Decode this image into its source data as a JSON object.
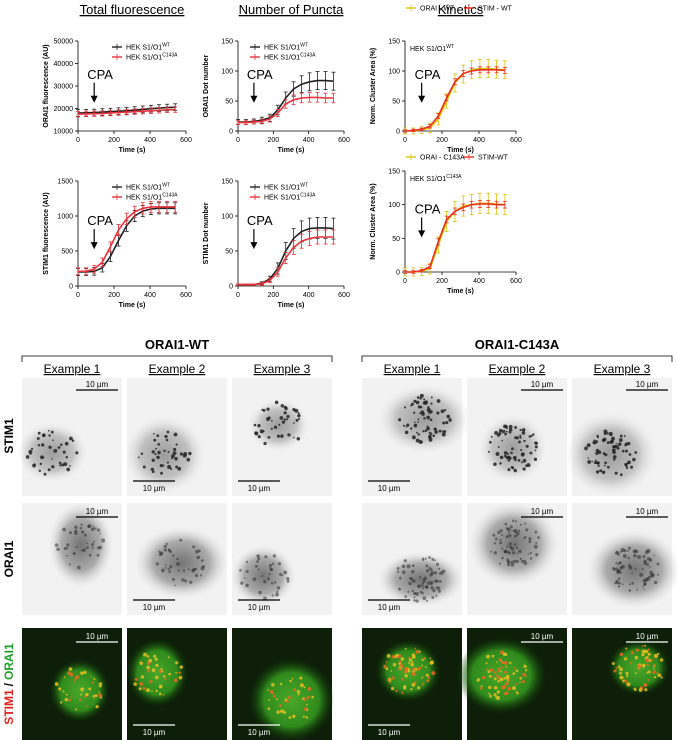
{
  "chart_data": [
    {
      "type": "line",
      "title": "Total fluorescence",
      "xlabel": "Time (s)",
      "ylabel": "ORAI1 fluorescence (AU)",
      "annotation": "CPA",
      "x": [
        0,
        45,
        90,
        135,
        180,
        225,
        270,
        315,
        360,
        405,
        450,
        495,
        540
      ],
      "xlim": [
        0,
        600
      ],
      "xticks": [
        0,
        200,
        400,
        600
      ],
      "ylim": [
        10000,
        50000
      ],
      "yticks": [
        10000,
        20000,
        30000,
        40000,
        50000
      ],
      "series": [
        {
          "name": "HEK S1/O1",
          "sup": "WT",
          "color": "#222222",
          "values": [
            18000,
            18100,
            18200,
            18400,
            18600,
            18800,
            19000,
            19300,
            19600,
            19900,
            20200,
            20400,
            20600
          ],
          "errors": [
            1500,
            1500,
            1500,
            1500,
            1500,
            1500,
            1500,
            1500,
            1500,
            1500,
            1500,
            1500,
            1500
          ]
        },
        {
          "name": "HEK S1/O1",
          "sup": "C143A",
          "color": "#e8323c",
          "values": [
            17500,
            17600,
            17700,
            17800,
            18000,
            18200,
            18400,
            18600,
            18800,
            19000,
            19200,
            19400,
            19500
          ],
          "errors": [
            1200,
            1200,
            1200,
            1200,
            1200,
            1200,
            1200,
            1200,
            1200,
            1200,
            1200,
            1200,
            1200
          ]
        }
      ]
    },
    {
      "type": "line",
      "title": "Number of Puncta",
      "xlabel": "Time (s)",
      "ylabel": "ORAI1 Dot number",
      "annotation": "CPA",
      "x": [
        0,
        45,
        90,
        135,
        180,
        225,
        270,
        315,
        360,
        405,
        450,
        495,
        540
      ],
      "xlim": [
        0,
        600
      ],
      "xticks": [
        0,
        200,
        400,
        600
      ],
      "ylim": [
        0,
        150
      ],
      "yticks": [
        0,
        50,
        100,
        150
      ],
      "series": [
        {
          "name": "HEK S1/O1",
          "sup": "WT",
          "color": "#222222",
          "values": [
            15,
            15,
            16,
            18,
            22,
            35,
            55,
            70,
            78,
            82,
            84,
            84,
            83
          ],
          "errors": [
            4,
            4,
            4,
            5,
            6,
            8,
            10,
            12,
            14,
            15,
            15,
            15,
            15
          ]
        },
        {
          "name": "HEK S1/O1",
          "sup": "C143A",
          "color": "#e8323c",
          "values": [
            14,
            14,
            15,
            16,
            20,
            30,
            45,
            52,
            55,
            56,
            56,
            55,
            55
          ],
          "errors": [
            3,
            3,
            3,
            4,
            5,
            6,
            7,
            8,
            8,
            8,
            8,
            8,
            8
          ]
        }
      ]
    },
    {
      "type": "line",
      "title": "Kinetics",
      "xlabel": "Time (s)",
      "ylabel": "Norm. Cluster Area (%)",
      "annotation": "CPA",
      "note": "HEK S1/O1",
      "note_sup": "WT",
      "x": [
        0,
        45,
        90,
        135,
        180,
        225,
        270,
        315,
        360,
        405,
        450,
        495,
        540
      ],
      "xlim": [
        0,
        600
      ],
      "xticks": [
        0,
        200,
        400,
        600
      ],
      "ylim": [
        0,
        150
      ],
      "yticks": [
        0,
        50,
        100,
        150
      ],
      "series": [
        {
          "name": "ORAI - WT",
          "color": "#d9c30a",
          "values": [
            0,
            0,
            2,
            5,
            20,
            50,
            80,
            95,
            102,
            104,
            104,
            103,
            102
          ],
          "errors": [
            5,
            5,
            6,
            8,
            10,
            12,
            15,
            15,
            15,
            15,
            15,
            15,
            15
          ]
        },
        {
          "name": "STIM - WT",
          "color": "#e8321e",
          "values": [
            0,
            1,
            3,
            8,
            25,
            55,
            82,
            96,
            100,
            102,
            102,
            102,
            101
          ],
          "errors": [
            2,
            2,
            2,
            3,
            4,
            5,
            5,
            5,
            5,
            5,
            5,
            5,
            5
          ]
        }
      ]
    },
    {
      "type": "line",
      "xlabel": "Time (s)",
      "ylabel": "STIM1 fluorescence (AU)",
      "annotation": "CPA",
      "x": [
        0,
        45,
        90,
        135,
        180,
        225,
        270,
        315,
        360,
        405,
        450,
        495,
        540
      ],
      "xlim": [
        0,
        600
      ],
      "xticks": [
        0,
        200,
        400,
        600
      ],
      "ylim": [
        0,
        1500
      ],
      "yticks": [
        0,
        500,
        1000,
        1500
      ],
      "series": [
        {
          "name": "HEK S1/O1",
          "sup": "WT",
          "color": "#222222",
          "values": [
            200,
            200,
            210,
            260,
            420,
            650,
            860,
            1000,
            1070,
            1100,
            1110,
            1110,
            1110
          ],
          "errors": [
            50,
            50,
            55,
            60,
            70,
            80,
            80,
            80,
            80,
            80,
            80,
            80,
            80
          ]
        },
        {
          "name": "HEK S1/O1",
          "sup": "C143A",
          "color": "#e8323c",
          "values": [
            210,
            210,
            240,
            340,
            560,
            800,
            960,
            1060,
            1110,
            1130,
            1130,
            1130,
            1130
          ],
          "errors": [
            50,
            50,
            55,
            60,
            70,
            80,
            80,
            80,
            80,
            80,
            80,
            80,
            80
          ]
        }
      ]
    },
    {
      "type": "line",
      "xlabel": "Time (s)",
      "ylabel": "STIM1 Dot number",
      "annotation": "CPA",
      "x": [
        0,
        45,
        90,
        135,
        180,
        225,
        270,
        315,
        360,
        405,
        450,
        495,
        540
      ],
      "xlim": [
        0,
        600
      ],
      "xticks": [
        0,
        200,
        400,
        600
      ],
      "ylim": [
        0,
        150
      ],
      "yticks": [
        0,
        50,
        100,
        150
      ],
      "series": [
        {
          "name": "HEK S1/O1",
          "sup": "WT",
          "color": "#222222",
          "values": [
            2,
            2,
            2,
            4,
            10,
            25,
            50,
            68,
            78,
            82,
            83,
            83,
            82
          ],
          "errors": [
            1,
            1,
            1,
            2,
            4,
            8,
            12,
            14,
            15,
            15,
            15,
            15,
            15
          ]
        },
        {
          "name": "HEK S1/O1",
          "sup": "C143A",
          "color": "#e8323c",
          "values": [
            2,
            2,
            2,
            3,
            8,
            20,
            40,
            55,
            64,
            68,
            70,
            70,
            70
          ],
          "errors": [
            1,
            1,
            1,
            2,
            3,
            6,
            8,
            10,
            10,
            10,
            10,
            10,
            10
          ]
        }
      ]
    },
    {
      "type": "line",
      "xlabel": "Time (s)",
      "ylabel": "Norm. Cluster Area (%)",
      "annotation": "CPA",
      "note": "HEK S1/O1",
      "note_sup": "C143A",
      "x": [
        0,
        45,
        90,
        135,
        180,
        225,
        270,
        315,
        360,
        405,
        450,
        495,
        540
      ],
      "xlim": [
        0,
        600
      ],
      "xticks": [
        0,
        200,
        400,
        600
      ],
      "ylim": [
        0,
        150
      ],
      "yticks": [
        0,
        50,
        100,
        150
      ],
      "series": [
        {
          "name": "ORAI - C143A",
          "color": "#d9c30a",
          "values": [
            0,
            0,
            1,
            5,
            40,
            75,
            90,
            98,
            100,
            102,
            102,
            101,
            100
          ],
          "errors": [
            6,
            6,
            6,
            8,
            12,
            15,
            15,
            15,
            15,
            15,
            15,
            15,
            15
          ]
        },
        {
          "name": "STIM-WT",
          "color": "#e8321e",
          "values": [
            0,
            0,
            2,
            8,
            45,
            78,
            90,
            96,
            100,
            101,
            101,
            100,
            100
          ],
          "errors": [
            2,
            2,
            2,
            3,
            5,
            5,
            5,
            5,
            5,
            5,
            5,
            5,
            5
          ]
        }
      ]
    }
  ],
  "images": {
    "groups": [
      {
        "title": "ORAI1-WT",
        "examples": [
          "Example 1",
          "Example 2",
          "Example 3"
        ]
      },
      {
        "title": "ORAI1-C143A",
        "examples": [
          "Example 1",
          "Example 2",
          "Example 3"
        ]
      }
    ],
    "rows": [
      "STIM1",
      "ORAI1"
    ],
    "merge_label": {
      "red": "STIM1",
      "separator": "/",
      "green": "ORAI1"
    },
    "scale_bar": "10 µm"
  }
}
